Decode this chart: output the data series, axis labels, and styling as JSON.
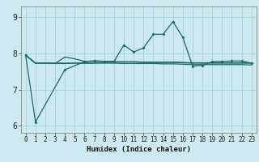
{
  "xlabel": "Humidex (Indice chaleur)",
  "ylim": [
    5.8,
    9.3
  ],
  "xlim": [
    -0.5,
    23.5
  ],
  "yticks": [
    6,
    7,
    8,
    9
  ],
  "xticks": [
    0,
    1,
    2,
    3,
    4,
    5,
    6,
    7,
    8,
    9,
    10,
    11,
    12,
    13,
    14,
    15,
    16,
    17,
    18,
    19,
    20,
    21,
    22,
    23
  ],
  "bg_color": "#cce9f0",
  "grid_color": "#afd4de",
  "line_color": "#1a6b60",
  "line1": {
    "x": [
      0,
      1,
      2,
      3,
      4,
      5,
      6,
      7,
      8,
      9,
      10,
      11,
      12,
      13,
      14,
      15,
      16,
      17,
      18,
      19,
      20,
      21,
      22,
      23
    ],
    "y": [
      7.95,
      7.73,
      7.73,
      7.72,
      7.72,
      7.73,
      7.73,
      7.73,
      7.75,
      7.76,
      7.76,
      7.76,
      7.75,
      7.75,
      7.75,
      7.75,
      7.74,
      7.73,
      7.73,
      7.73,
      7.73,
      7.73,
      7.73,
      7.73
    ]
  },
  "line2": {
    "x": [
      0,
      1,
      2,
      3,
      4,
      5,
      6,
      7,
      8,
      9,
      10,
      11,
      12,
      13,
      14,
      15,
      16,
      17,
      18,
      19,
      20,
      21,
      22,
      23
    ],
    "y": [
      7.95,
      7.73,
      7.73,
      7.72,
      7.9,
      7.85,
      7.78,
      7.78,
      7.78,
      7.77,
      7.77,
      7.77,
      7.76,
      7.76,
      7.76,
      7.76,
      7.75,
      7.74,
      7.74,
      7.74,
      7.74,
      7.74,
      7.74,
      7.74
    ]
  },
  "line3_with_markers": {
    "x": [
      0,
      1,
      4,
      6,
      7,
      8,
      9,
      10,
      11,
      12,
      13,
      14,
      15,
      16,
      17,
      18,
      19,
      20,
      21,
      22,
      23
    ],
    "y": [
      7.95,
      6.1,
      7.55,
      7.77,
      7.8,
      7.78,
      7.78,
      8.23,
      8.04,
      8.15,
      8.53,
      8.53,
      8.88,
      8.45,
      7.65,
      7.67,
      7.77,
      7.78,
      7.79,
      7.79,
      7.73
    ]
  },
  "line4": {
    "x": [
      0,
      1,
      2,
      3,
      4,
      5,
      6,
      7,
      8,
      9,
      10,
      11,
      12,
      13,
      14,
      15,
      16,
      17,
      18,
      19,
      20,
      21,
      22,
      23
    ],
    "y": [
      7.95,
      7.73,
      7.73,
      7.73,
      7.73,
      7.73,
      7.73,
      7.73,
      7.73,
      7.73,
      7.72,
      7.72,
      7.72,
      7.72,
      7.71,
      7.71,
      7.7,
      7.69,
      7.69,
      7.69,
      7.69,
      7.69,
      7.69,
      7.68
    ]
  }
}
